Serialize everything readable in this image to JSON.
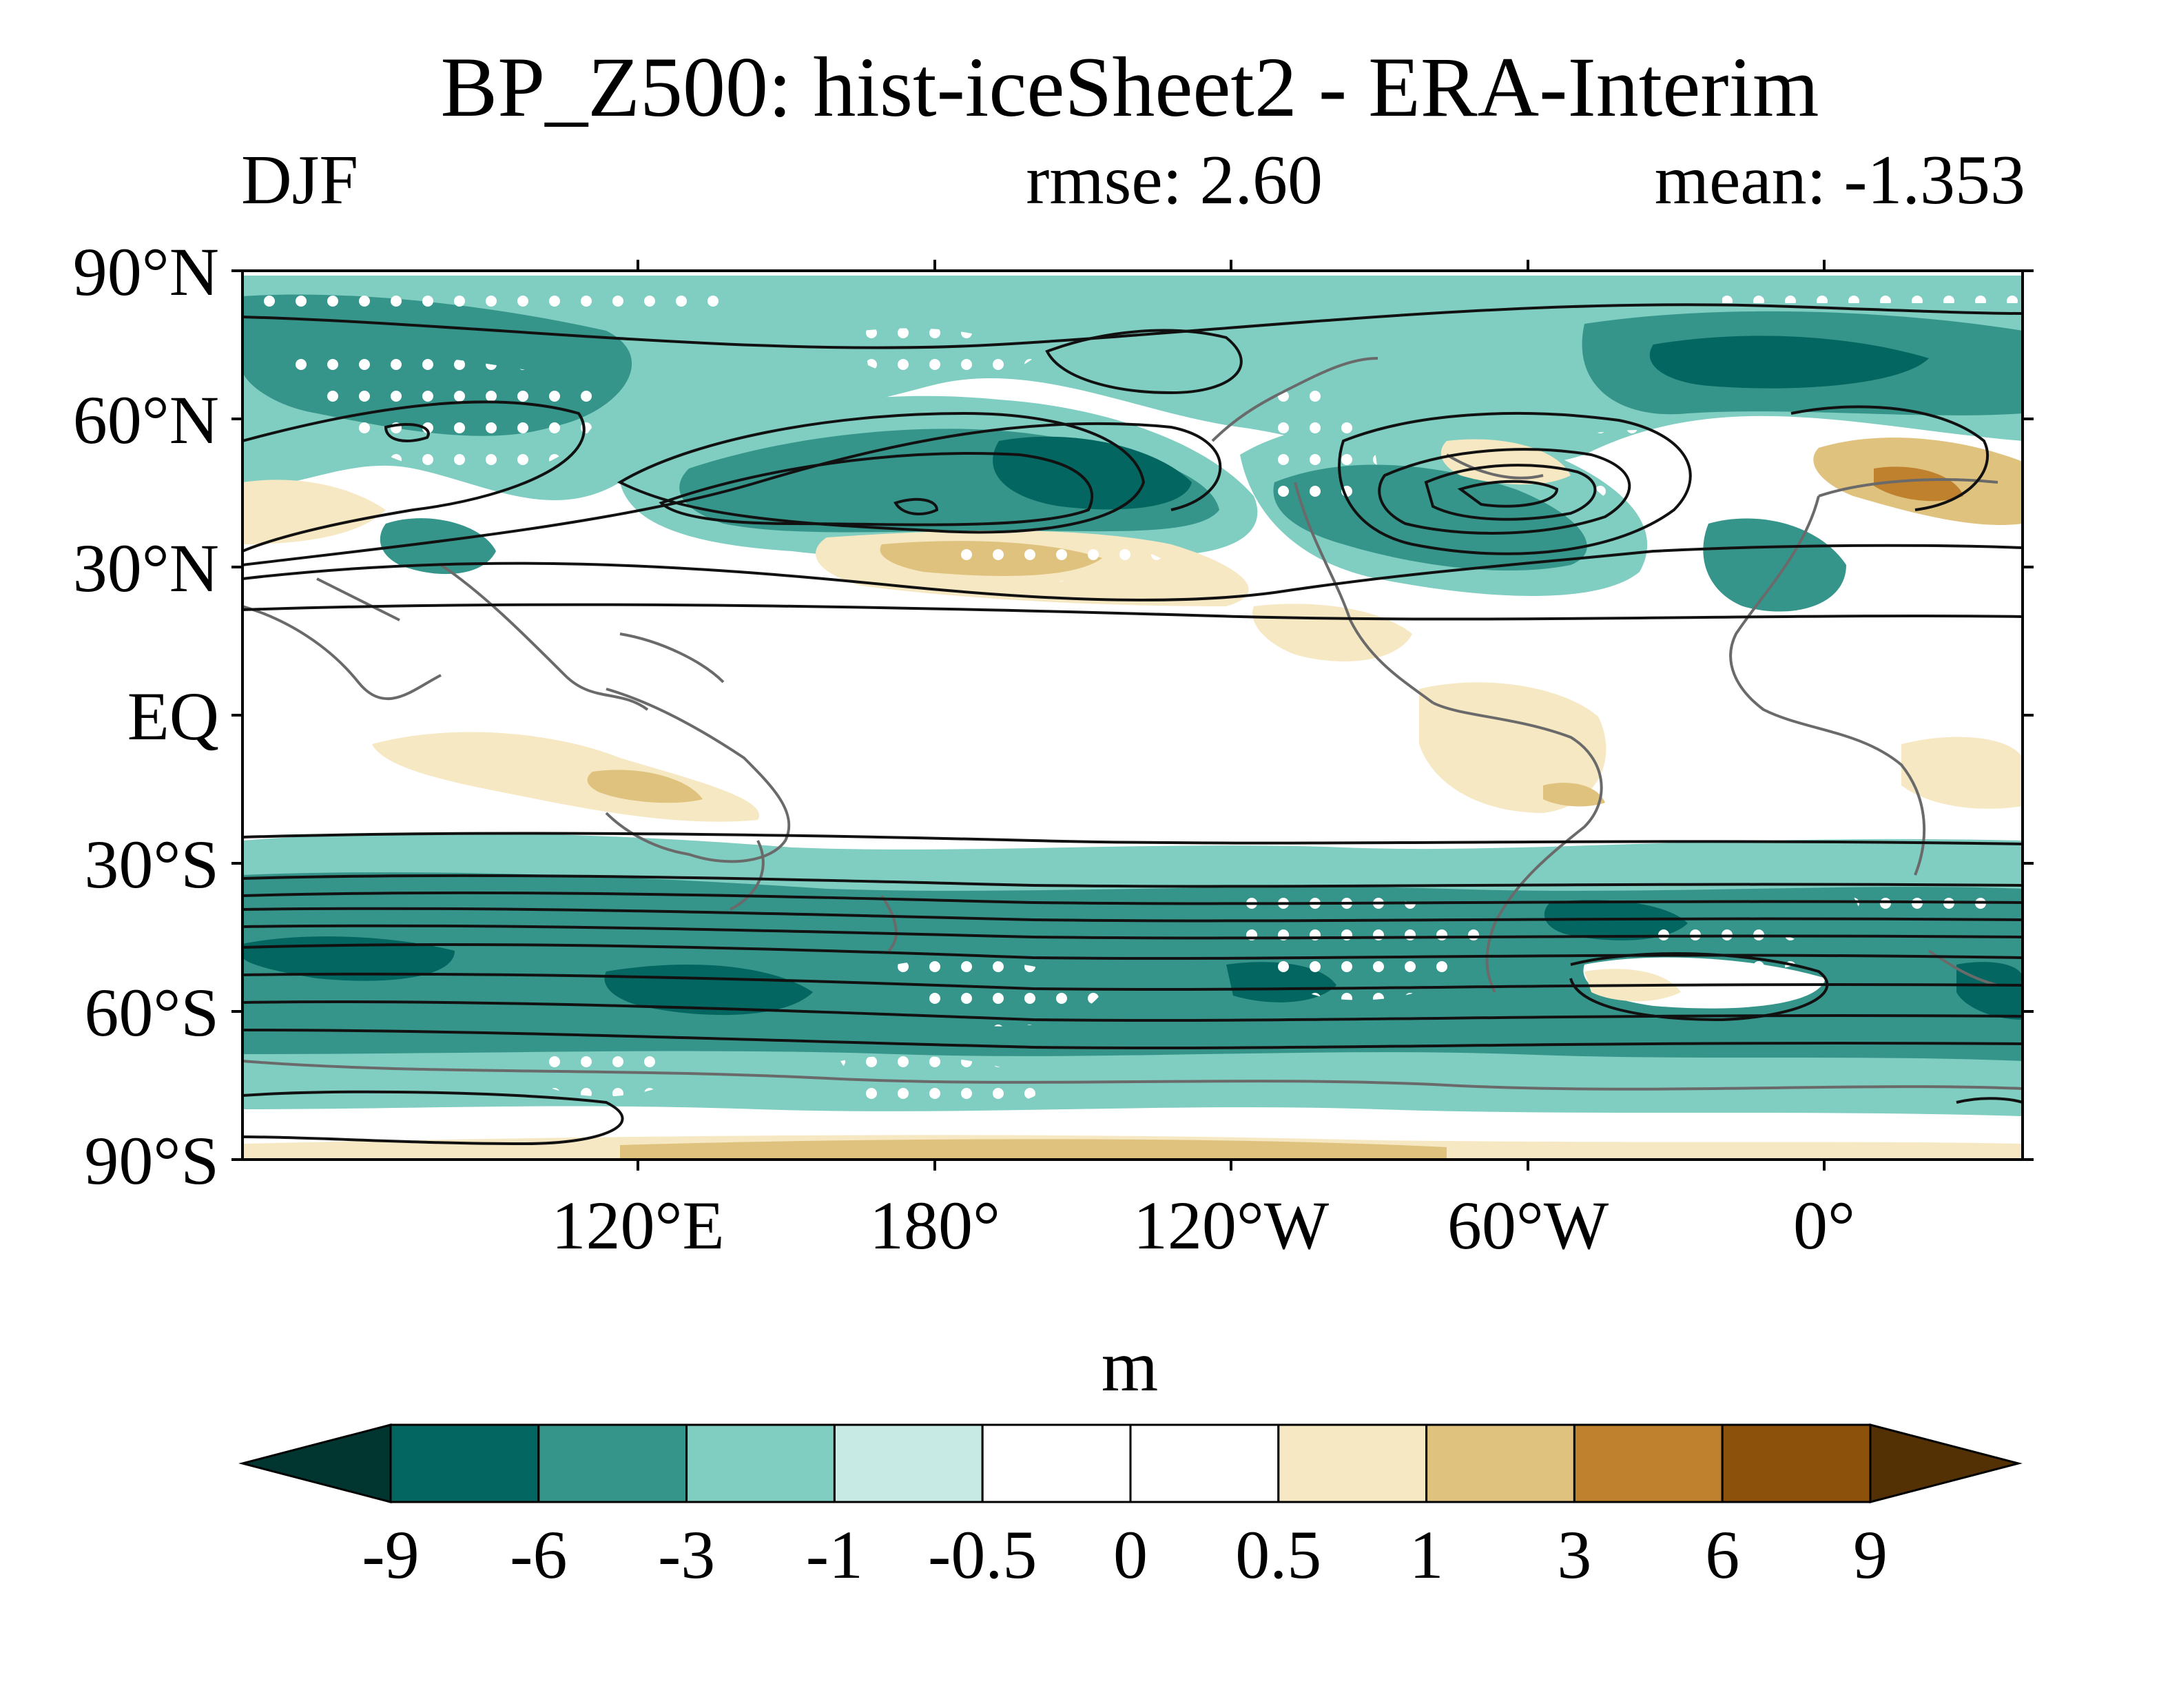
{
  "title": "BP_Z500: hist-iceSheet2 - ERA-Interim",
  "subtitle": {
    "season": "DJF",
    "rmse": "rmse: 2.60",
    "mean": "mean: -1.353"
  },
  "map": {
    "projection": "cylindrical equidistant",
    "lon_range": [
      -10,
      350
    ],
    "lat_range": [
      -90,
      90
    ],
    "lat_labels": [
      "90°N",
      "60°N",
      "30°N",
      "EQ",
      "30°S",
      "60°S",
      "90°S"
    ],
    "lat_values": [
      90,
      60,
      30,
      0,
      -30,
      -60,
      -90
    ],
    "lon_labels": [
      "120°E",
      "180°",
      "120°W",
      "60°W",
      "0°"
    ],
    "lon_values": [
      120,
      180,
      240,
      300,
      360
    ],
    "overlays": [
      "filled anomaly contours",
      "line contours (climatology)",
      "white stippling (significance)",
      "coastlines"
    ]
  },
  "colorbar": {
    "unit": "m",
    "ticks": [
      "-9",
      "-6",
      "-3",
      "-1",
      "-0.5",
      "0",
      "0.5",
      "1",
      "3",
      "6",
      "9"
    ],
    "colors": [
      "#01352f",
      "#036660",
      "#36958a",
      "#80cdc1",
      "#c7eae5",
      "#ffffff",
      "#ffffff",
      "#f6e8c3",
      "#dfc27d",
      "#bf812d",
      "#8c510a",
      "#543005"
    ]
  }
}
